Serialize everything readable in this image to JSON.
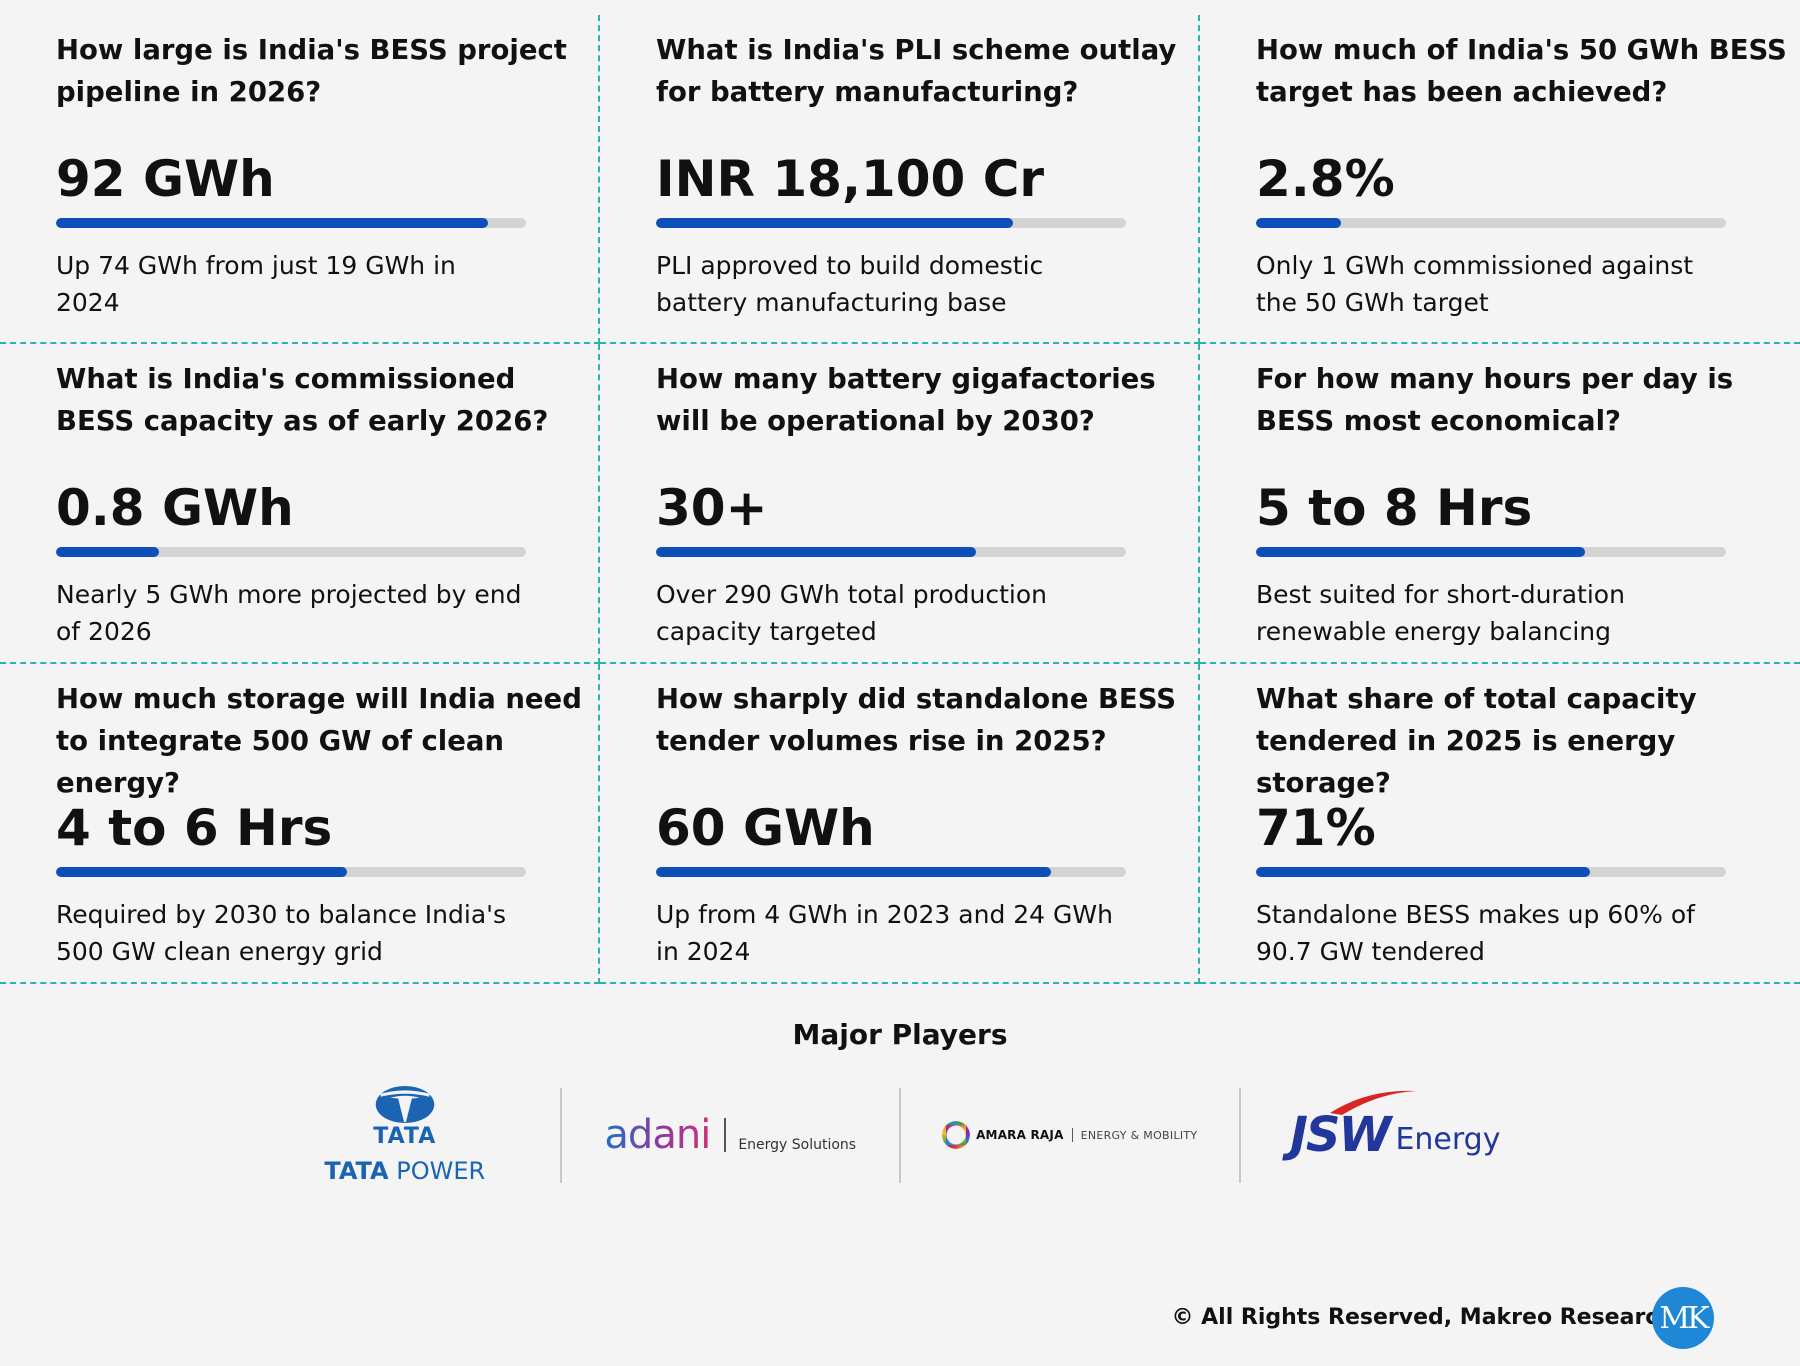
{
  "cards": [
    {
      "question": "How large is India's BESS project pipeline in 2026?",
      "value": "92 GWh",
      "fill": 0.92,
      "desc": "Up 74 GWh from just 19 GWh in 2024"
    },
    {
      "question": "What is India's PLI scheme outlay for battery manufacturing?",
      "value": "INR 18,100 Cr",
      "fill": 0.76,
      "desc": "PLI approved to build domestic battery manufacturing base"
    },
    {
      "question": "How much of India's 50 GWh BESS target has been achieved?",
      "value": "2.8%",
      "fill": 0.18,
      "desc": "Only 1 GWh commissioned against the 50 GWh target"
    },
    {
      "question": "What is India's commissioned BESS capacity as of early 2026?",
      "value": "0.8 GWh",
      "fill": 0.22,
      "desc": "Nearly 5 GWh more projected by end of 2026"
    },
    {
      "question": "How many battery gigafactories will be operational by 2030?",
      "value": "30+",
      "fill": 0.68,
      "desc": "Over 290 GWh total production capacity targeted"
    },
    {
      "question": "For how many hours per day is BESS most economical?",
      "value": "5 to 8 Hrs",
      "fill": 0.7,
      "desc": "Best suited for short-duration renewable energy balancing"
    },
    {
      "question": "How much storage will India need to integrate 500 GW of clean energy?",
      "value": "4 to 6 Hrs",
      "fill": 0.62,
      "desc": "Required by 2030 to balance India's 500 GW clean energy grid"
    },
    {
      "question": "How sharply did standalone BESS tender volumes rise in 2025?",
      "value": "60 GWh",
      "fill": 0.84,
      "desc": "Up from 4 GWh in 2023 and 24 GWh in 2024"
    },
    {
      "question": "What share of total capacity tendered in 2025 is energy storage?",
      "value": "71%",
      "fill": 0.71,
      "desc": "Standalone BESS makes up 60% of 90.7 GW tendered"
    }
  ],
  "players": {
    "title": "Major Players",
    "tata": {
      "word": "TATA",
      "power_a": "TATA",
      "power_b": " POWER"
    },
    "adani": {
      "word": "adani",
      "sub": "Energy Solutions"
    },
    "amara": {
      "name": "AMARA RAJA",
      "sub": "ENERGY & MOBILITY"
    },
    "jsw": {
      "word": "JSW",
      "sub": "Energy"
    }
  },
  "footer": {
    "text": "© All Rights Reserved, Makreo Research",
    "badge": "MK"
  },
  "colors": {
    "accent": "#0d4fb8",
    "track": "#d3d3d3",
    "divider": "#2fb3a8"
  }
}
